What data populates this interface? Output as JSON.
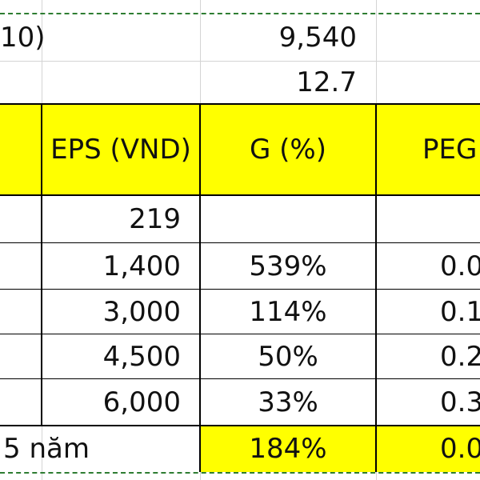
{
  "top_rows": [
    {
      "label": "10)",
      "value": "9,540"
    },
    {
      "value": "12.7"
    }
  ],
  "header": {
    "eps": "EPS (VND)",
    "g": "G  (%)",
    "peg": "PEG"
  },
  "rows": [
    {
      "eps": "219",
      "g": "",
      "peg": ""
    },
    {
      "eps": "1,400",
      "g": "539%",
      "peg": "0.0"
    },
    {
      "eps": "3,000",
      "g": "114%",
      "peg": "0.1"
    },
    {
      "eps": "4,500",
      "g": "50%",
      "peg": "0.2"
    },
    {
      "eps": "6,000",
      "g": "33%",
      "peg": "0.3"
    }
  ],
  "summary": {
    "label": "5 năm",
    "g": "184%",
    "peg": "0.0"
  },
  "colors": {
    "highlight": "#ffff00",
    "dash": "#2e7d32",
    "gridline": "#d4d4d4"
  }
}
